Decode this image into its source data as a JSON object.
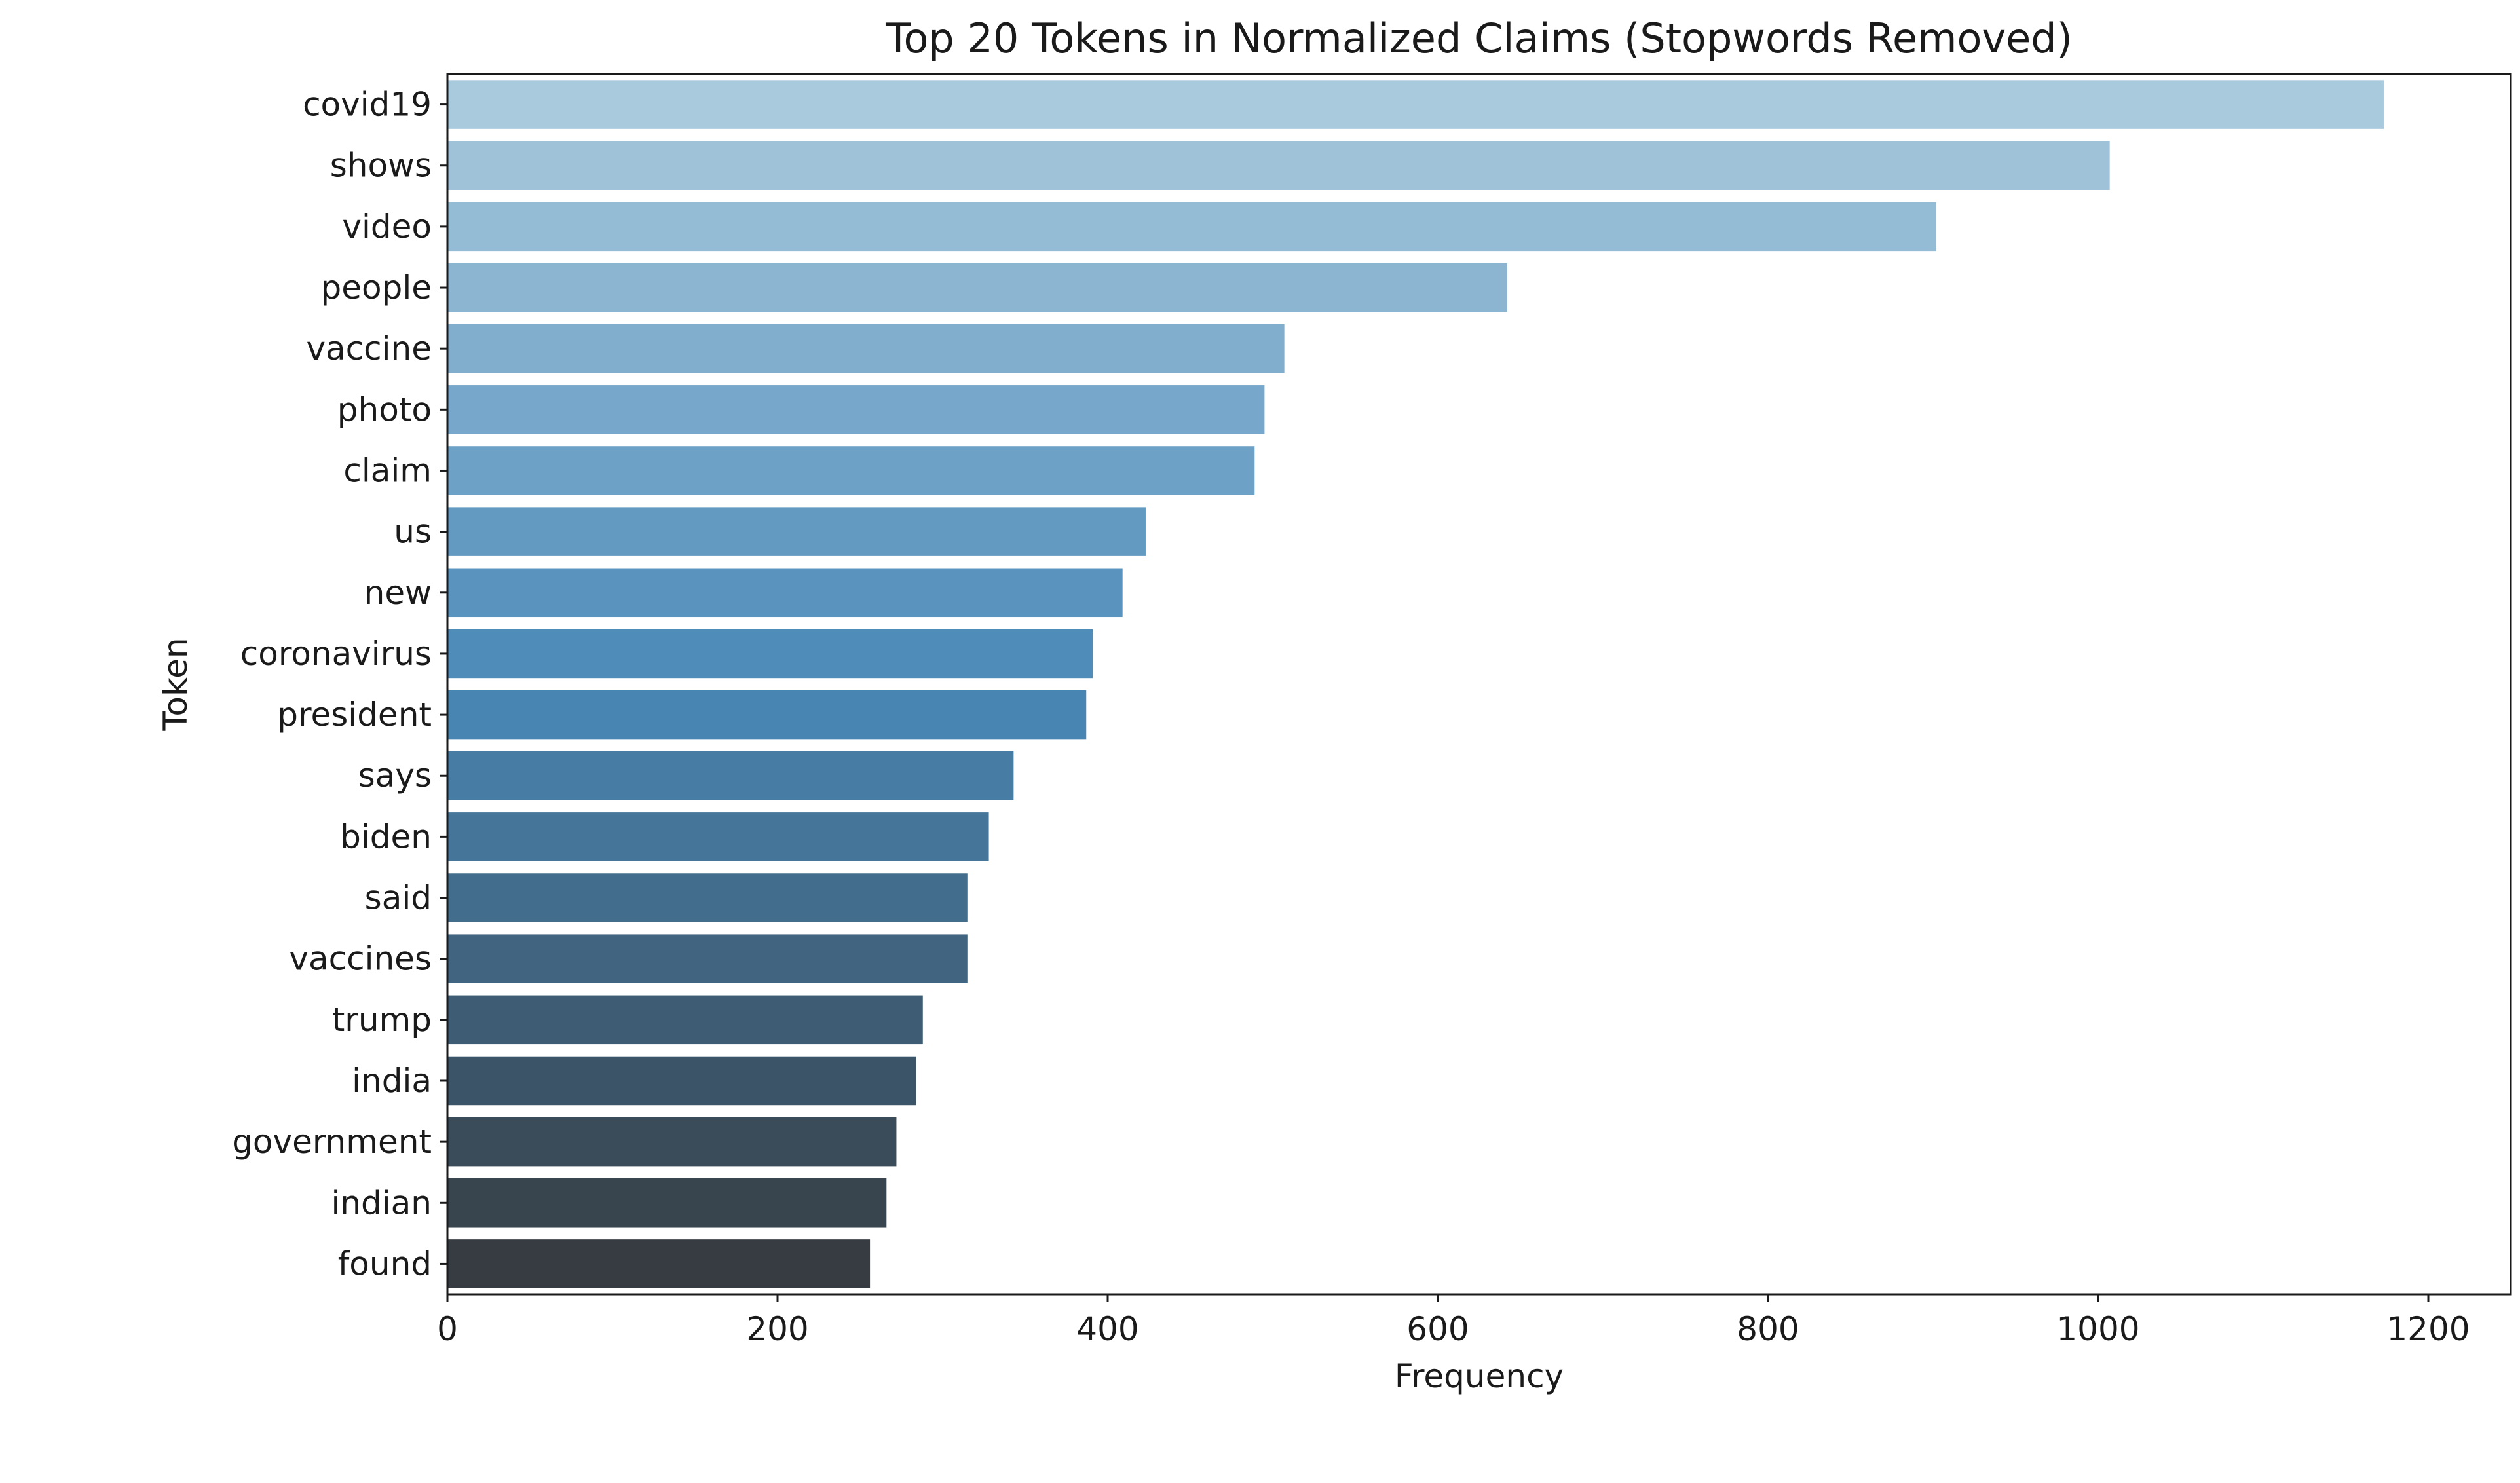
{
  "chart_data": {
    "type": "bar",
    "orientation": "horizontal",
    "title": "Top 20 Tokens in Normalized Claims (Stopwords Removed)",
    "xlabel": "Frequency",
    "ylabel": "Token",
    "xlim": [
      0,
      1250
    ],
    "xticks": [
      0,
      200,
      400,
      600,
      800,
      1000,
      1200
    ],
    "grid": false,
    "legend": "none",
    "categories": [
      "covid19",
      "shows",
      "video",
      "people",
      "vaccine",
      "photo",
      "claim",
      "us",
      "new",
      "coronavirus",
      "president",
      "says",
      "biden",
      "said",
      "vaccines",
      "trump",
      "india",
      "government",
      "indian",
      "found"
    ],
    "values": [
      1173,
      1007,
      902,
      642,
      507,
      495,
      489,
      423,
      409,
      391,
      387,
      343,
      328,
      315,
      315,
      288,
      284,
      272,
      266,
      256
    ],
    "colors": {
      "palette_start": "#a9c9dd",
      "palette_mid": "#4a89b8",
      "palette_end": "#363c41"
    }
  }
}
